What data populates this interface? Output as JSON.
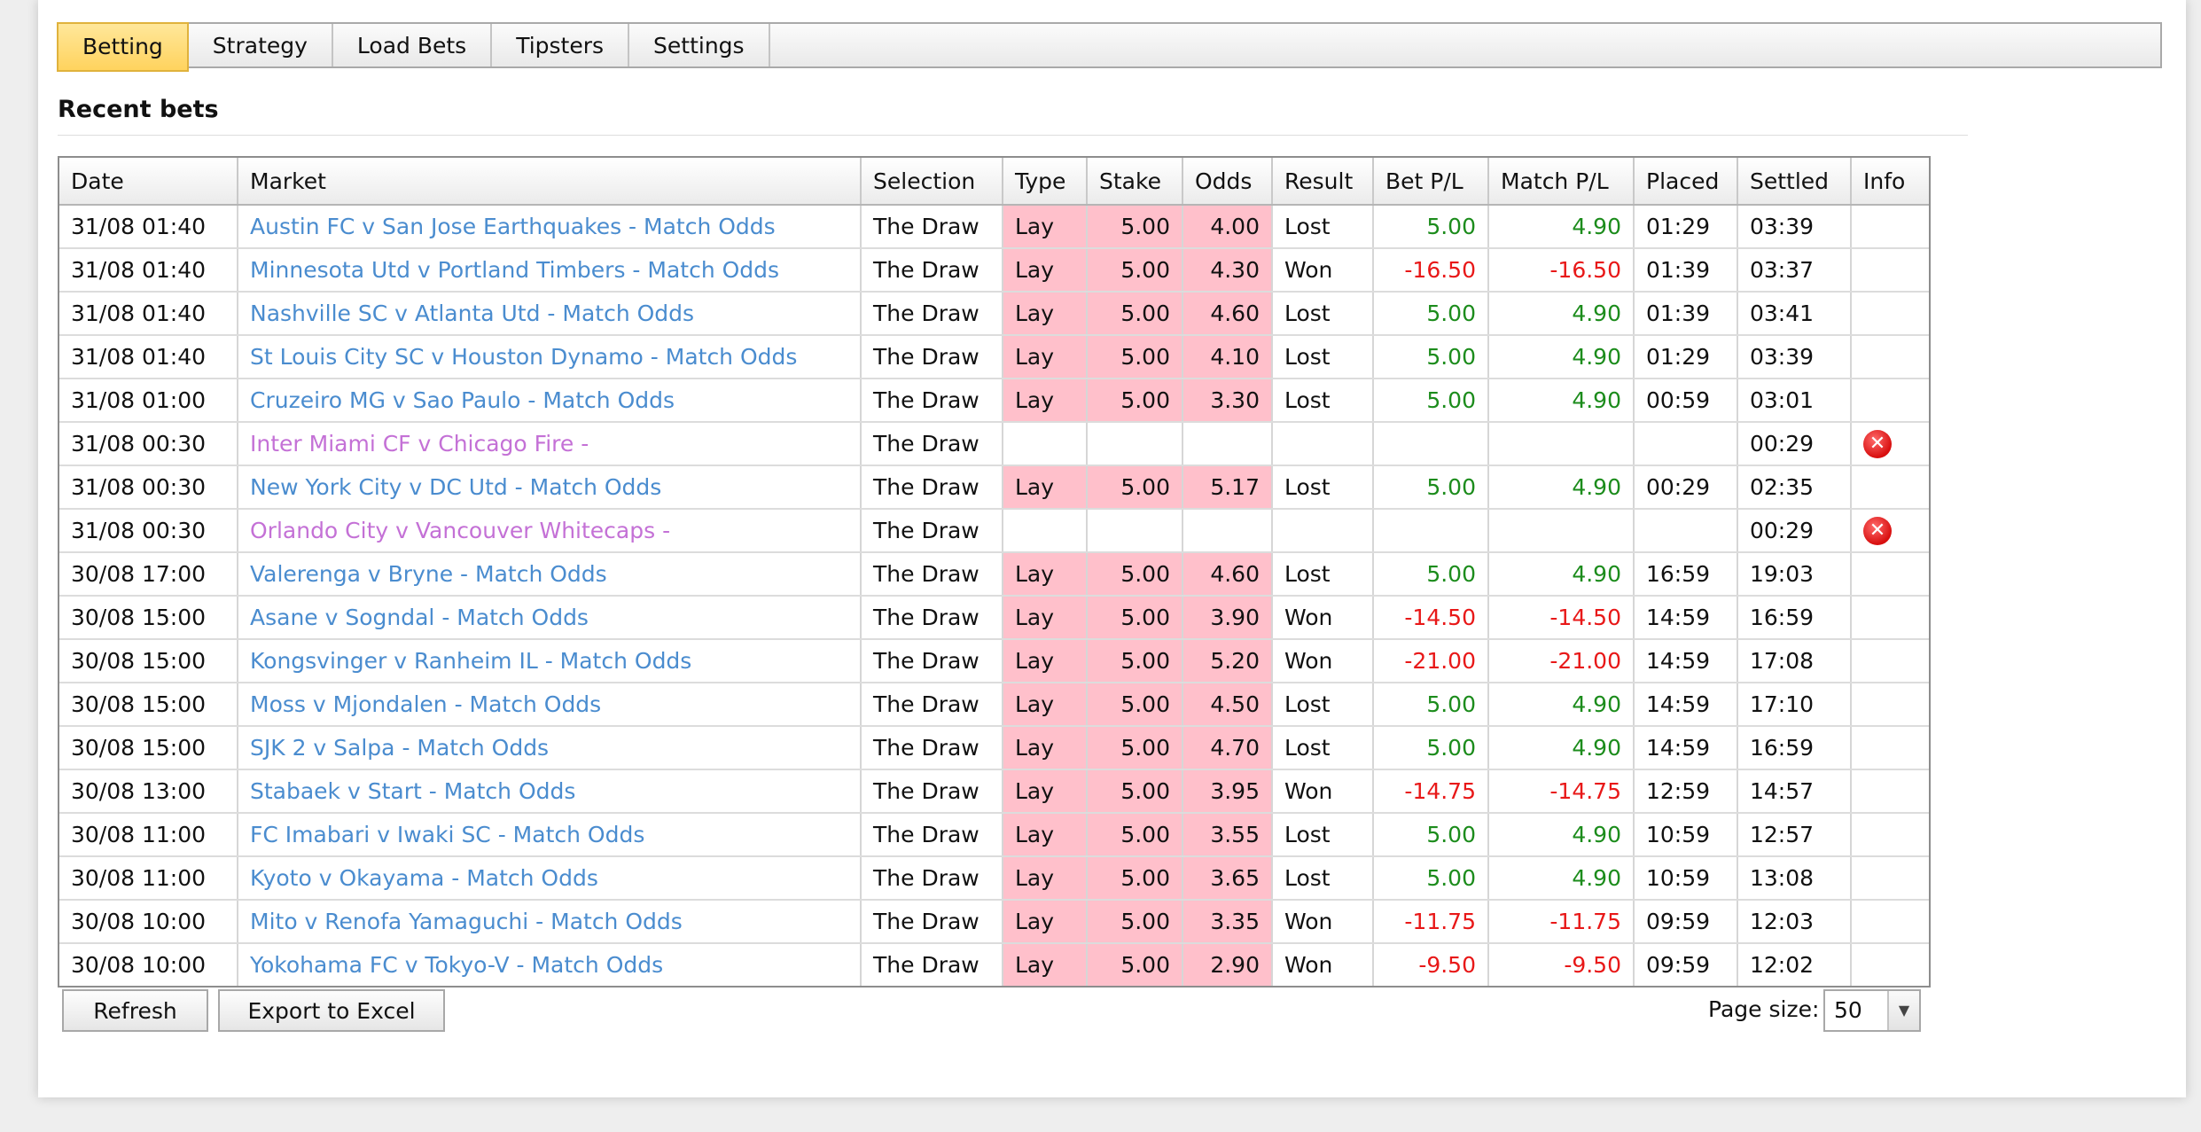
{
  "tabs": [
    {
      "label": "Betting",
      "active": true
    },
    {
      "label": "Strategy",
      "active": false
    },
    {
      "label": "Load Bets",
      "active": false
    },
    {
      "label": "Tipsters",
      "active": false
    },
    {
      "label": "Settings",
      "active": false
    }
  ],
  "section": {
    "title": "Recent bets"
  },
  "table": {
    "columns": [
      "Date",
      "Market",
      "Selection",
      "Type",
      "Stake",
      "Odds",
      "Result",
      "Bet P/L",
      "Match P/L",
      "Placed",
      "Settled",
      "Info"
    ],
    "rows": [
      {
        "date": "31/08 01:40",
        "market": "Austin FC v San Jose Earthquakes - Match Odds",
        "selection": "The Draw",
        "type": "Lay",
        "stake": "5.00",
        "odds": "4.00",
        "result": "Lost",
        "bet_pl": "5.00",
        "match_pl": "4.90",
        "placed": "01:29",
        "settled": "03:39",
        "info": "",
        "status": "settled"
      },
      {
        "date": "31/08 01:40",
        "market": "Minnesota Utd v Portland Timbers - Match Odds",
        "selection": "The Draw",
        "type": "Lay",
        "stake": "5.00",
        "odds": "4.30",
        "result": "Won",
        "bet_pl": "-16.50",
        "match_pl": "-16.50",
        "placed": "01:39",
        "settled": "03:37",
        "info": "",
        "status": "settled"
      },
      {
        "date": "31/08 01:40",
        "market": "Nashville SC v Atlanta Utd - Match Odds",
        "selection": "The Draw",
        "type": "Lay",
        "stake": "5.00",
        "odds": "4.60",
        "result": "Lost",
        "bet_pl": "5.00",
        "match_pl": "4.90",
        "placed": "01:39",
        "settled": "03:41",
        "info": "",
        "status": "settled"
      },
      {
        "date": "31/08 01:40",
        "market": "St Louis City SC v Houston Dynamo - Match Odds",
        "selection": "The Draw",
        "type": "Lay",
        "stake": "5.00",
        "odds": "4.10",
        "result": "Lost",
        "bet_pl": "5.00",
        "match_pl": "4.90",
        "placed": "01:29",
        "settled": "03:39",
        "info": "",
        "status": "settled"
      },
      {
        "date": "31/08 01:00",
        "market": "Cruzeiro MG v Sao Paulo - Match Odds",
        "selection": "The Draw",
        "type": "Lay",
        "stake": "5.00",
        "odds": "3.30",
        "result": "Lost",
        "bet_pl": "5.00",
        "match_pl": "4.90",
        "placed": "00:59",
        "settled": "03:01",
        "info": "",
        "status": "settled"
      },
      {
        "date": "31/08 00:30",
        "market": "Inter Miami CF v Chicago Fire -",
        "selection": "The Draw",
        "type": "",
        "stake": "",
        "odds": "",
        "result": "",
        "bet_pl": "",
        "match_pl": "",
        "placed": "",
        "settled": "00:29",
        "info": "error-icon",
        "status": "pending"
      },
      {
        "date": "31/08 00:30",
        "market": "New York City v DC Utd - Match Odds",
        "selection": "The Draw",
        "type": "Lay",
        "stake": "5.00",
        "odds": "5.17",
        "result": "Lost",
        "bet_pl": "5.00",
        "match_pl": "4.90",
        "placed": "00:29",
        "settled": "02:35",
        "info": "",
        "status": "settled"
      },
      {
        "date": "31/08 00:30",
        "market": "Orlando City v Vancouver Whitecaps -",
        "selection": "The Draw",
        "type": "",
        "stake": "",
        "odds": "",
        "result": "",
        "bet_pl": "",
        "match_pl": "",
        "placed": "",
        "settled": "00:29",
        "info": "error-icon",
        "status": "pending"
      },
      {
        "date": "30/08 17:00",
        "market": "Valerenga v Bryne - Match Odds",
        "selection": "The Draw",
        "type": "Lay",
        "stake": "5.00",
        "odds": "4.60",
        "result": "Lost",
        "bet_pl": "5.00",
        "match_pl": "4.90",
        "placed": "16:59",
        "settled": "19:03",
        "info": "",
        "status": "settled"
      },
      {
        "date": "30/08 15:00",
        "market": "Asane v Sogndal - Match Odds",
        "selection": "The Draw",
        "type": "Lay",
        "stake": "5.00",
        "odds": "3.90",
        "result": "Won",
        "bet_pl": "-14.50",
        "match_pl": "-14.50",
        "placed": "14:59",
        "settled": "16:59",
        "info": "",
        "status": "settled"
      },
      {
        "date": "30/08 15:00",
        "market": "Kongsvinger v Ranheim IL - Match Odds",
        "selection": "The Draw",
        "type": "Lay",
        "stake": "5.00",
        "odds": "5.20",
        "result": "Won",
        "bet_pl": "-21.00",
        "match_pl": "-21.00",
        "placed": "14:59",
        "settled": "17:08",
        "info": "",
        "status": "settled"
      },
      {
        "date": "30/08 15:00",
        "market": "Moss v Mjondalen - Match Odds",
        "selection": "The Draw",
        "type": "Lay",
        "stake": "5.00",
        "odds": "4.50",
        "result": "Lost",
        "bet_pl": "5.00",
        "match_pl": "4.90",
        "placed": "14:59",
        "settled": "17:10",
        "info": "",
        "status": "settled"
      },
      {
        "date": "30/08 15:00",
        "market": "SJK 2 v Salpa - Match Odds",
        "selection": "The Draw",
        "type": "Lay",
        "stake": "5.00",
        "odds": "4.70",
        "result": "Lost",
        "bet_pl": "5.00",
        "match_pl": "4.90",
        "placed": "14:59",
        "settled": "16:59",
        "info": "",
        "status": "settled"
      },
      {
        "date": "30/08 13:00",
        "market": "Stabaek v Start - Match Odds",
        "selection": "The Draw",
        "type": "Lay",
        "stake": "5.00",
        "odds": "3.95",
        "result": "Won",
        "bet_pl": "-14.75",
        "match_pl": "-14.75",
        "placed": "12:59",
        "settled": "14:57",
        "info": "",
        "status": "settled"
      },
      {
        "date": "30/08 11:00",
        "market": "FC Imabari v Iwaki SC - Match Odds",
        "selection": "The Draw",
        "type": "Lay",
        "stake": "5.00",
        "odds": "3.55",
        "result": "Lost",
        "bet_pl": "5.00",
        "match_pl": "4.90",
        "placed": "10:59",
        "settled": "12:57",
        "info": "",
        "status": "settled"
      },
      {
        "date": "30/08 11:00",
        "market": "Kyoto v Okayama - Match Odds",
        "selection": "The Draw",
        "type": "Lay",
        "stake": "5.00",
        "odds": "3.65",
        "result": "Lost",
        "bet_pl": "5.00",
        "match_pl": "4.90",
        "placed": "10:59",
        "settled": "13:08",
        "info": "",
        "status": "settled"
      },
      {
        "date": "30/08 10:00",
        "market": "Mito v Renofa Yamaguchi - Match Odds",
        "selection": "The Draw",
        "type": "Lay",
        "stake": "5.00",
        "odds": "3.35",
        "result": "Won",
        "bet_pl": "-11.75",
        "match_pl": "-11.75",
        "placed": "09:59",
        "settled": "12:03",
        "info": "",
        "status": "settled"
      },
      {
        "date": "30/08 10:00",
        "market": "Yokohama FC v Tokyo-V - Match Odds",
        "selection": "The Draw",
        "type": "Lay",
        "stake": "5.00",
        "odds": "2.90",
        "result": "Won",
        "bet_pl": "-9.50",
        "match_pl": "-9.50",
        "placed": "09:59",
        "settled": "12:02",
        "info": "",
        "status": "settled"
      }
    ]
  },
  "footer": {
    "refresh_label": "Refresh",
    "export_label": "Export to Excel",
    "page_size_label": "Page size:",
    "page_size_value": "50"
  },
  "colors": {
    "lay_bg": "#ffc0cb",
    "profit": "#1c8c1c",
    "loss": "#e81818",
    "link": "#4a8ccf",
    "pending_link": "#c471d6",
    "active_tab": "#ffd35e"
  }
}
